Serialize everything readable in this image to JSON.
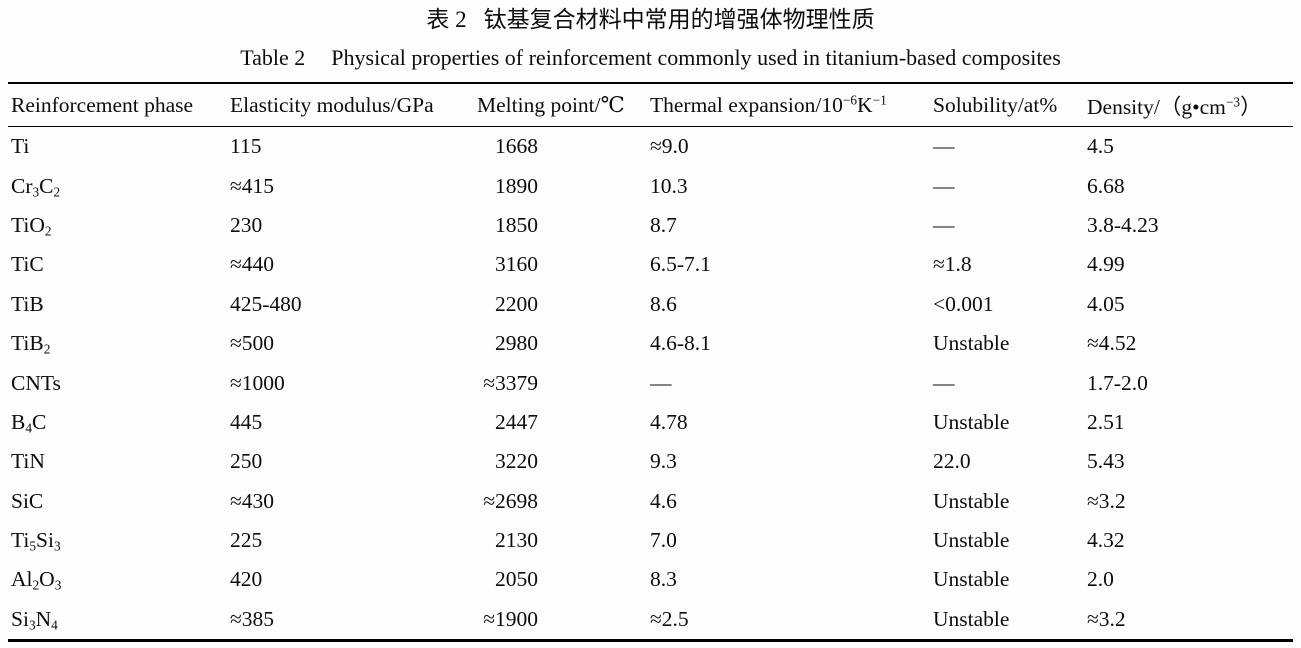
{
  "colors": {
    "background": "#fdfdfd",
    "text": "#0d0d0d",
    "rule": "#000000"
  },
  "titles": {
    "zh_label": "表 2",
    "zh_text": "钛基复合材料中常用的增强体物理性质",
    "en_label": "Table 2",
    "en_text": "Physical properties of reinforcement commonly used in titanium-based composites"
  },
  "table": {
    "notation": {
      "subscript_marker": "~x~",
      "superscript_marker": "^x^"
    },
    "column_keys": [
      "phase",
      "modulus",
      "melting",
      "expansion",
      "solubility",
      "density"
    ],
    "headers": [
      "Reinforcement phase",
      "Elasticity modulus/GPa",
      "Melting point/℃",
      "Thermal expansion/10^−6^K^−1^",
      "Solubility/at%",
      "Density/（g•cm^−3^）"
    ],
    "rows": [
      [
        "Ti",
        "115",
        "1668",
        "≈9.0",
        "—",
        "4.5"
      ],
      [
        "Cr~3~C~2~",
        "≈415",
        "1890",
        "10.3",
        "—",
        "6.68"
      ],
      [
        "TiO~2~",
        "230",
        "1850",
        "8.7",
        "—",
        "3.8-4.23"
      ],
      [
        "TiC",
        "≈440",
        "3160",
        "6.5-7.1",
        "≈1.8",
        "4.99"
      ],
      [
        "TiB",
        "425-480",
        "2200",
        "8.6",
        "<0.001",
        "4.05"
      ],
      [
        "TiB~2~",
        "≈500",
        "2980",
        "4.6-8.1",
        "Unstable",
        "≈4.52"
      ],
      [
        "CNTs",
        "≈1000",
        "≈3379",
        "—",
        "—",
        "1.7-2.0"
      ],
      [
        "B~4~C",
        "445",
        "2447",
        "4.78",
        "Unstable",
        "2.51"
      ],
      [
        "TiN",
        "250",
        "3220",
        "9.3",
        "22.0",
        "5.43"
      ],
      [
        "SiC",
        "≈430",
        "≈2698",
        "4.6",
        "Unstable",
        "≈3.2"
      ],
      [
        "Ti~5~Si~3~",
        "225",
        "2130",
        "7.0",
        "Unstable",
        "4.32"
      ],
      [
        "Al~2~O~3~",
        "420",
        "2050",
        "8.3",
        "Unstable",
        "2.0"
      ],
      [
        "Si~3~N~4~",
        "≈385",
        "≈1900",
        "≈2.5",
        "Unstable",
        "≈3.2"
      ]
    ]
  }
}
